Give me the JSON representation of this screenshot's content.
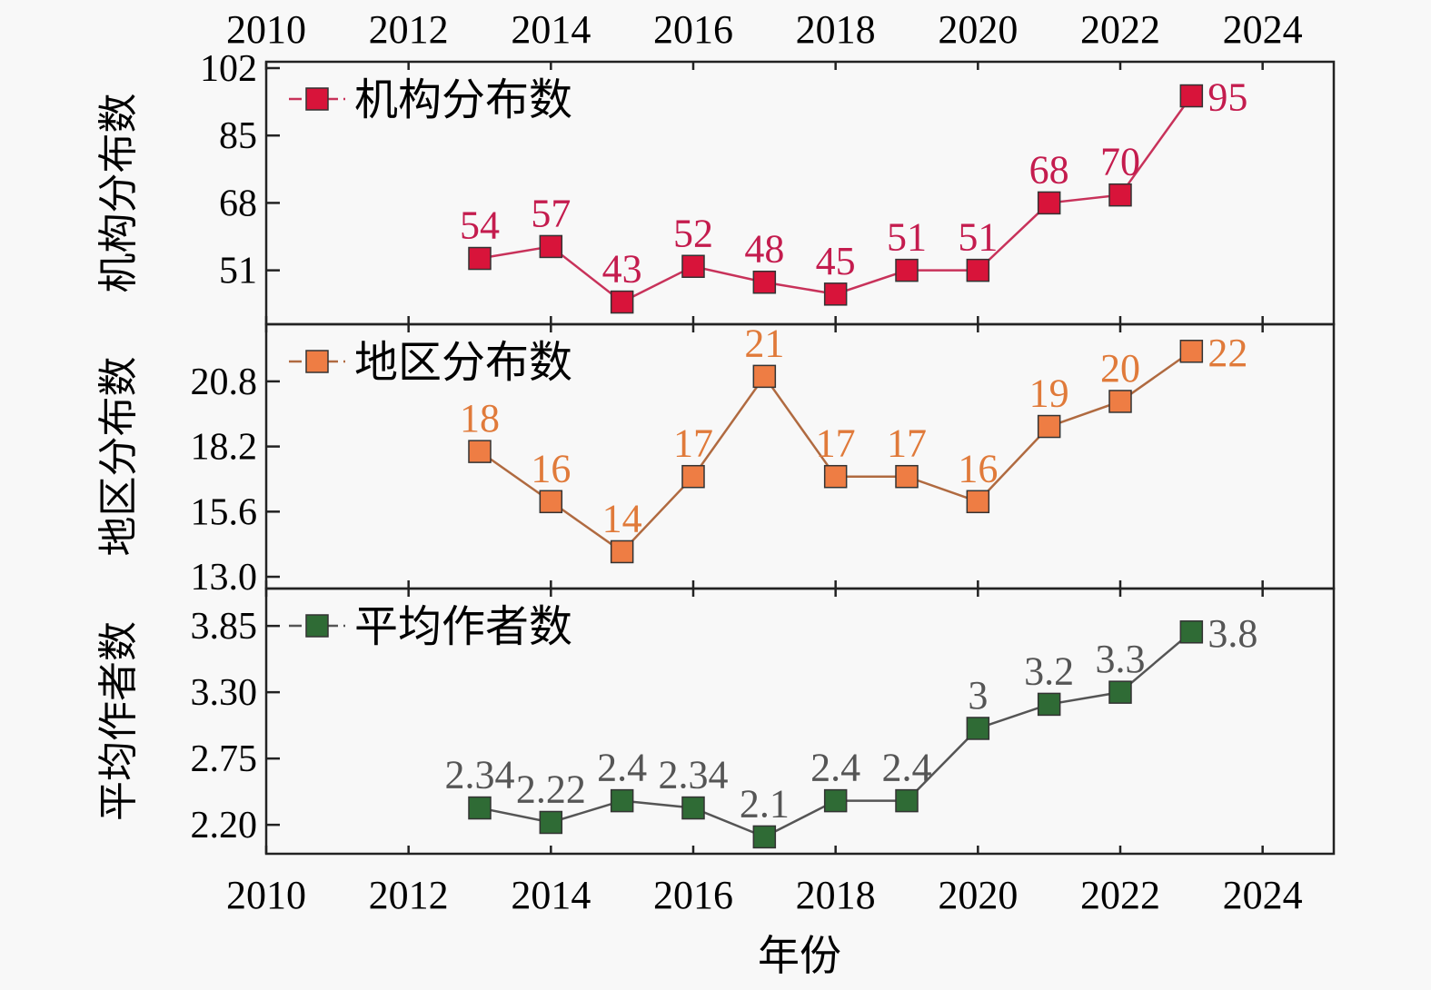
{
  "chart_data": {
    "type": "line",
    "xlabel": "年份",
    "x_ticks": [
      "2010",
      "2012",
      "2014",
      "2016",
      "2018",
      "2020",
      "2022",
      "2024"
    ],
    "xlim": [
      2010,
      2025
    ],
    "x": [
      2013,
      2014,
      2015,
      2016,
      2017,
      2018,
      2019,
      2020,
      2021,
      2022,
      2023
    ],
    "panels": [
      {
        "name": "机构分布数",
        "ylabel": "机构分布数",
        "legend": "机构分布数",
        "color": "#d8143a",
        "label_color": "#c41c4e",
        "line_color": "#c8325a",
        "y_ticks": [
          "102",
          "85",
          "68",
          "51"
        ],
        "ylim": [
          37.4,
          103.6
        ],
        "values": [
          54,
          57,
          43,
          52,
          48,
          45,
          51,
          51,
          68,
          70,
          95
        ],
        "labels": [
          "54",
          "57",
          "43",
          "52",
          "48",
          "45",
          "51",
          "51",
          "68",
          "70",
          "95"
        ]
      },
      {
        "name": "地区分布数",
        "ylabel": "地区分布数",
        "legend": "地区分布数",
        "color": "#ee7d44",
        "label_color": "#e07a3a",
        "line_color": "#b06a40",
        "y_ticks": [
          "20.8",
          "18.2",
          "15.6",
          "13.0"
        ],
        "ylim": [
          12.53,
          23.08
        ],
        "values": [
          18,
          16,
          14,
          17,
          21,
          17,
          17,
          16,
          19,
          20,
          22
        ],
        "labels": [
          "18",
          "16",
          "14",
          "17",
          "21",
          "17",
          "17",
          "16",
          "19",
          "20",
          "22"
        ]
      },
      {
        "name": "平均作者数",
        "ylabel": "平均作者数",
        "legend": "平均作者数",
        "color": "#2f6b35",
        "label_color": "#555555",
        "line_color": "#555555",
        "y_ticks": [
          "3.85",
          "3.30",
          "2.75",
          "2.20"
        ],
        "ylim": [
          1.96,
          4.16
        ],
        "values": [
          2.34,
          2.22,
          2.4,
          2.34,
          2.1,
          2.4,
          2.4,
          3,
          3.2,
          3.3,
          3.8
        ],
        "labels": [
          "2.34",
          "2.22",
          "2.4",
          "2.34",
          "2.1",
          "2.4",
          "2.4",
          "3",
          "3.2",
          "3.3",
          "3.8"
        ]
      }
    ]
  }
}
